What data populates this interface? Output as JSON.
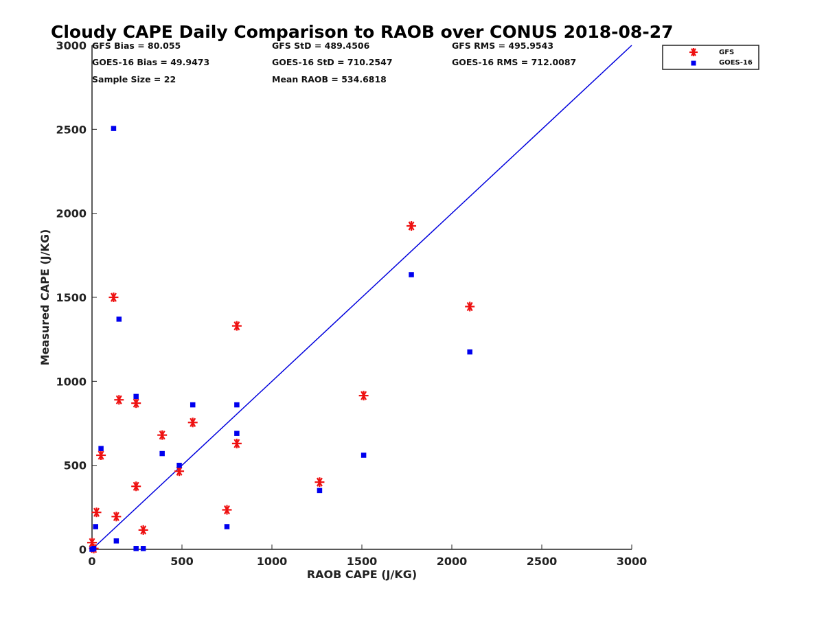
{
  "chart_data": {
    "type": "scatter",
    "title": "Cloudy CAPE Daily Comparison to RAOB over CONUS 2018-08-27",
    "xlabel": "RAOB CAPE (J/KG)",
    "ylabel": "Measured CAPE (J/KG)",
    "xlim": [
      0,
      3000
    ],
    "ylim": [
      0,
      3000
    ],
    "xticks": [
      0,
      500,
      1000,
      1500,
      2000,
      2500,
      3000
    ],
    "yticks": [
      0,
      500,
      1000,
      1500,
      2000,
      2500,
      3000
    ],
    "grid": false,
    "legend_position": "top-right, outside plot",
    "reference_line": {
      "type": "one-to-one",
      "color": "#0000dd"
    },
    "stats": [
      "GFS Bias = 80.055",
      "GOES-16 Bias = 49.9473",
      "Sample Size = 22",
      "GFS StD = 489.4506",
      "GOES-16 StD = 710.2547",
      "Mean RAOB = 534.6818",
      "GFS RMS = 495.9543",
      "GOES-16 RMS = 712.0087"
    ],
    "series": [
      {
        "name": "GFS",
        "marker": "asterisk",
        "color": "#ee1111",
        "points": [
          [
            0,
            40
          ],
          [
            10,
            5
          ],
          [
            25,
            220
          ],
          [
            50,
            560
          ],
          [
            120,
            1500
          ],
          [
            135,
            195
          ],
          [
            150,
            890
          ],
          [
            245,
            870
          ],
          [
            245,
            375
          ],
          [
            285,
            115
          ],
          [
            390,
            680
          ],
          [
            485,
            465
          ],
          [
            560,
            755
          ],
          [
            750,
            235
          ],
          [
            805,
            1330
          ],
          [
            805,
            630
          ],
          [
            1265,
            400
          ],
          [
            1510,
            915
          ],
          [
            1775,
            1925
          ],
          [
            2100,
            1445
          ]
        ]
      },
      {
        "name": "GOES-16",
        "marker": "square",
        "color": "#0000ee",
        "points": [
          [
            0,
            0
          ],
          [
            10,
            5
          ],
          [
            20,
            135
          ],
          [
            50,
            600
          ],
          [
            120,
            2505
          ],
          [
            135,
            50
          ],
          [
            150,
            1370
          ],
          [
            245,
            910
          ],
          [
            245,
            5
          ],
          [
            285,
            5
          ],
          [
            390,
            570
          ],
          [
            485,
            500
          ],
          [
            560,
            860
          ],
          [
            750,
            135
          ],
          [
            805,
            860
          ],
          [
            805,
            690
          ],
          [
            1265,
            350
          ],
          [
            1510,
            560
          ],
          [
            1775,
            1635
          ],
          [
            2100,
            1175
          ]
        ]
      }
    ]
  }
}
